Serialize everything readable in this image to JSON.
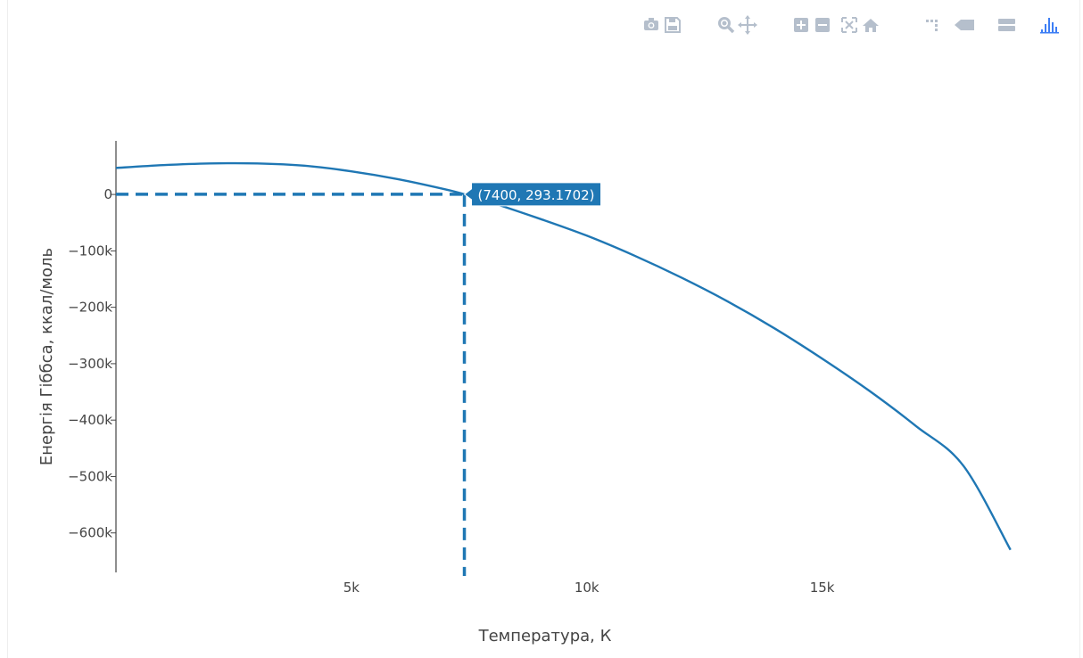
{
  "toolbar": {
    "buttons": [
      {
        "name": "camera-icon",
        "label": "Download plot as png"
      },
      {
        "name": "save-icon",
        "label": "Save and edit plot"
      },
      {
        "name": "zoom-icon",
        "label": "Zoom"
      },
      {
        "name": "pan-icon",
        "label": "Pan"
      },
      {
        "name": "zoom-in-icon",
        "label": "Zoom in"
      },
      {
        "name": "zoom-out-icon",
        "label": "Zoom out"
      },
      {
        "name": "autoscale-icon",
        "label": "Autoscale"
      },
      {
        "name": "home-icon",
        "label": "Reset axes"
      },
      {
        "name": "spike-lines-icon",
        "label": "Toggle Spike Lines"
      },
      {
        "name": "hover-closest-icon",
        "label": "Show closest data on hover"
      },
      {
        "name": "hover-compare-icon",
        "label": "Compare data on hover"
      },
      {
        "name": "plotly-logo-icon",
        "label": "Produced with Plotly"
      }
    ],
    "icon_color": "#b5bfcc",
    "active_color": "#3d7ef5"
  },
  "chart_data": {
    "type": "line",
    "xlabel": "Температура, К",
    "ylabel": "Енергія Гіббса, ккал/моль",
    "xlim": [
      0,
      19100
    ],
    "ylim": [
      -670000,
      95000
    ],
    "x_ticks": [
      {
        "value": 5000,
        "label": "5k"
      },
      {
        "value": 10000,
        "label": "10k"
      },
      {
        "value": 15000,
        "label": "15k"
      }
    ],
    "y_ticks": [
      {
        "value": 0,
        "label": "0"
      },
      {
        "value": -100000,
        "label": "−100k"
      },
      {
        "value": -200000,
        "label": "−200k"
      },
      {
        "value": -300000,
        "label": "−300k"
      },
      {
        "value": -400000,
        "label": "−400k"
      },
      {
        "value": -500000,
        "label": "−500k"
      },
      {
        "value": -600000,
        "label": "−600k"
      }
    ],
    "series": [
      {
        "color": "#1f77b4",
        "x": [
          0,
          1000,
          2000,
          3000,
          4000,
          5000,
          6000,
          7000,
          7400,
          8000,
          9000,
          10000,
          11000,
          12000,
          13000,
          14000,
          15000,
          16000,
          17000,
          18000,
          19000
        ],
        "y": [
          47000,
          52000,
          55000,
          55000,
          51000,
          41000,
          27000,
          9000,
          293.1702,
          -15000,
          -43000,
          -73000,
          -108000,
          -147000,
          -190000,
          -238000,
          -291000,
          -348000,
          -411000,
          -481000,
          -630000
        ]
      }
    ],
    "hover": {
      "x": 7400,
      "y": 293.1702,
      "label": "(7400, 293.1702)",
      "bg": "#1f77b4"
    },
    "grid": false,
    "legend": "none"
  }
}
